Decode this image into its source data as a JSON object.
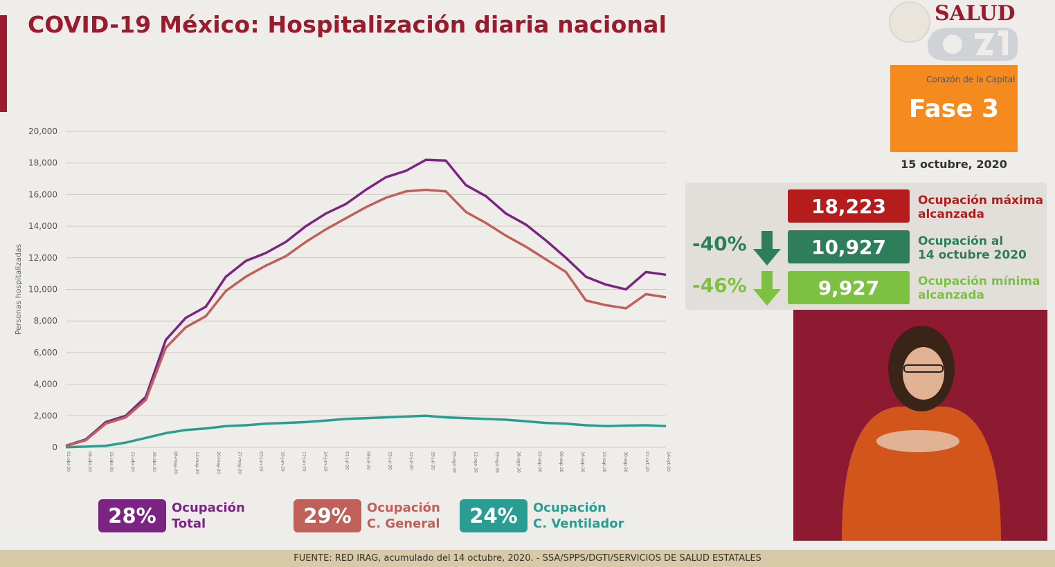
{
  "title": "COVID-19 México: Hospitalización diaria nacional",
  "brand": {
    "salud": "SALUD",
    "channel_tagline": "Corazón de la Capital",
    "fase": "Fase 3",
    "date": "15 octubre, 2020"
  },
  "stats": {
    "max": {
      "value": "18,223",
      "label_1": "Ocupación máxima",
      "label_2": "alcanzada",
      "color": "#b71c1c"
    },
    "current": {
      "value": "10,927",
      "label_1": "Ocupación al",
      "label_2": "14 octubre 2020",
      "color": "#2e7d5b",
      "pct": "-40%"
    },
    "min": {
      "value": "9,927",
      "label_1": "Ocupación mínima",
      "label_2": "alcanzada",
      "color": "#7cc142",
      "pct": "-46%"
    }
  },
  "legend": [
    {
      "pct": "28%",
      "line1": "Ocupación",
      "line2": "Total",
      "color": "#7b2483"
    },
    {
      "pct": "29%",
      "line1": "Ocupación",
      "line2": "C. General",
      "color": "#c0605a"
    },
    {
      "pct": "24%",
      "line1": "Ocupación",
      "line2": "C. Ventilador",
      "color": "#2a9d92"
    }
  ],
  "footer": "FUENTE: RED IRAG, acumulado del 14 octubre, 2020. -  SSA/SPPS/DGTI/SERVICIOS DE SALUD ESTATALES",
  "chart_data": {
    "type": "line",
    "ylabel": "Personas hospitalizadas",
    "ylim": [
      0,
      20000
    ],
    "yticks": [
      0,
      2000,
      4000,
      6000,
      8000,
      10000,
      12000,
      14000,
      16000,
      18000,
      20000
    ],
    "ytick_labels": [
      "0",
      "2,000",
      "4,000",
      "6,000",
      "8,000",
      "10,000",
      "12,000",
      "14,000",
      "16,000",
      "18,000",
      "20,000"
    ],
    "grid": true,
    "x_tick_labels": [
      "01-abr-20",
      "08-abr-20",
      "15-abr-20",
      "22-abr-20",
      "29-abr-20",
      "06-may-20",
      "13-may-20",
      "20-may-20",
      "27-may-20",
      "03-jun-20",
      "10-jun-20",
      "17-jun-20",
      "24-jun-20",
      "01-jul-20",
      "08-jul-20",
      "15-jul-20",
      "22-jul-20",
      "29-jul-20",
      "05-ago-20",
      "12-ago-20",
      "19-ago-20",
      "26-ago-20",
      "02-sep-20",
      "09-sep-20",
      "16-sep-20",
      "23-sep-20",
      "30-sep-20",
      "07-oct-20",
      "14-oct-20"
    ],
    "series": [
      {
        "name": "Ocupación Total",
        "color": "#7b2483",
        "values": [
          100,
          500,
          1600,
          2000,
          3200,
          6800,
          8200,
          8900,
          10800,
          11800,
          12300,
          13000,
          14000,
          14800,
          15400,
          16300,
          17100,
          17500,
          18200,
          18150,
          16600,
          15900,
          14800,
          14100,
          13100,
          12000,
          10800,
          10300,
          10000,
          11100,
          10927
        ]
      },
      {
        "name": "Ocupación C. General",
        "color": "#c0605a",
        "values": [
          90,
          450,
          1500,
          1900,
          3000,
          6300,
          7600,
          8300,
          9900,
          10800,
          11500,
          12100,
          13000,
          13800,
          14500,
          15200,
          15800,
          16200,
          16300,
          16200,
          14900,
          14200,
          13400,
          12700,
          11900,
          11100,
          9300,
          9000,
          8800,
          9700,
          9500
        ]
      },
      {
        "name": "Ocupación C. Ventilador",
        "color": "#2a9d92",
        "values": [
          10,
          50,
          100,
          300,
          600,
          900,
          1100,
          1200,
          1350,
          1400,
          1500,
          1550,
          1600,
          1700,
          1800,
          1850,
          1900,
          1950,
          2000,
          1900,
          1850,
          1800,
          1750,
          1650,
          1550,
          1500,
          1400,
          1350,
          1380,
          1400,
          1350
        ]
      }
    ]
  }
}
